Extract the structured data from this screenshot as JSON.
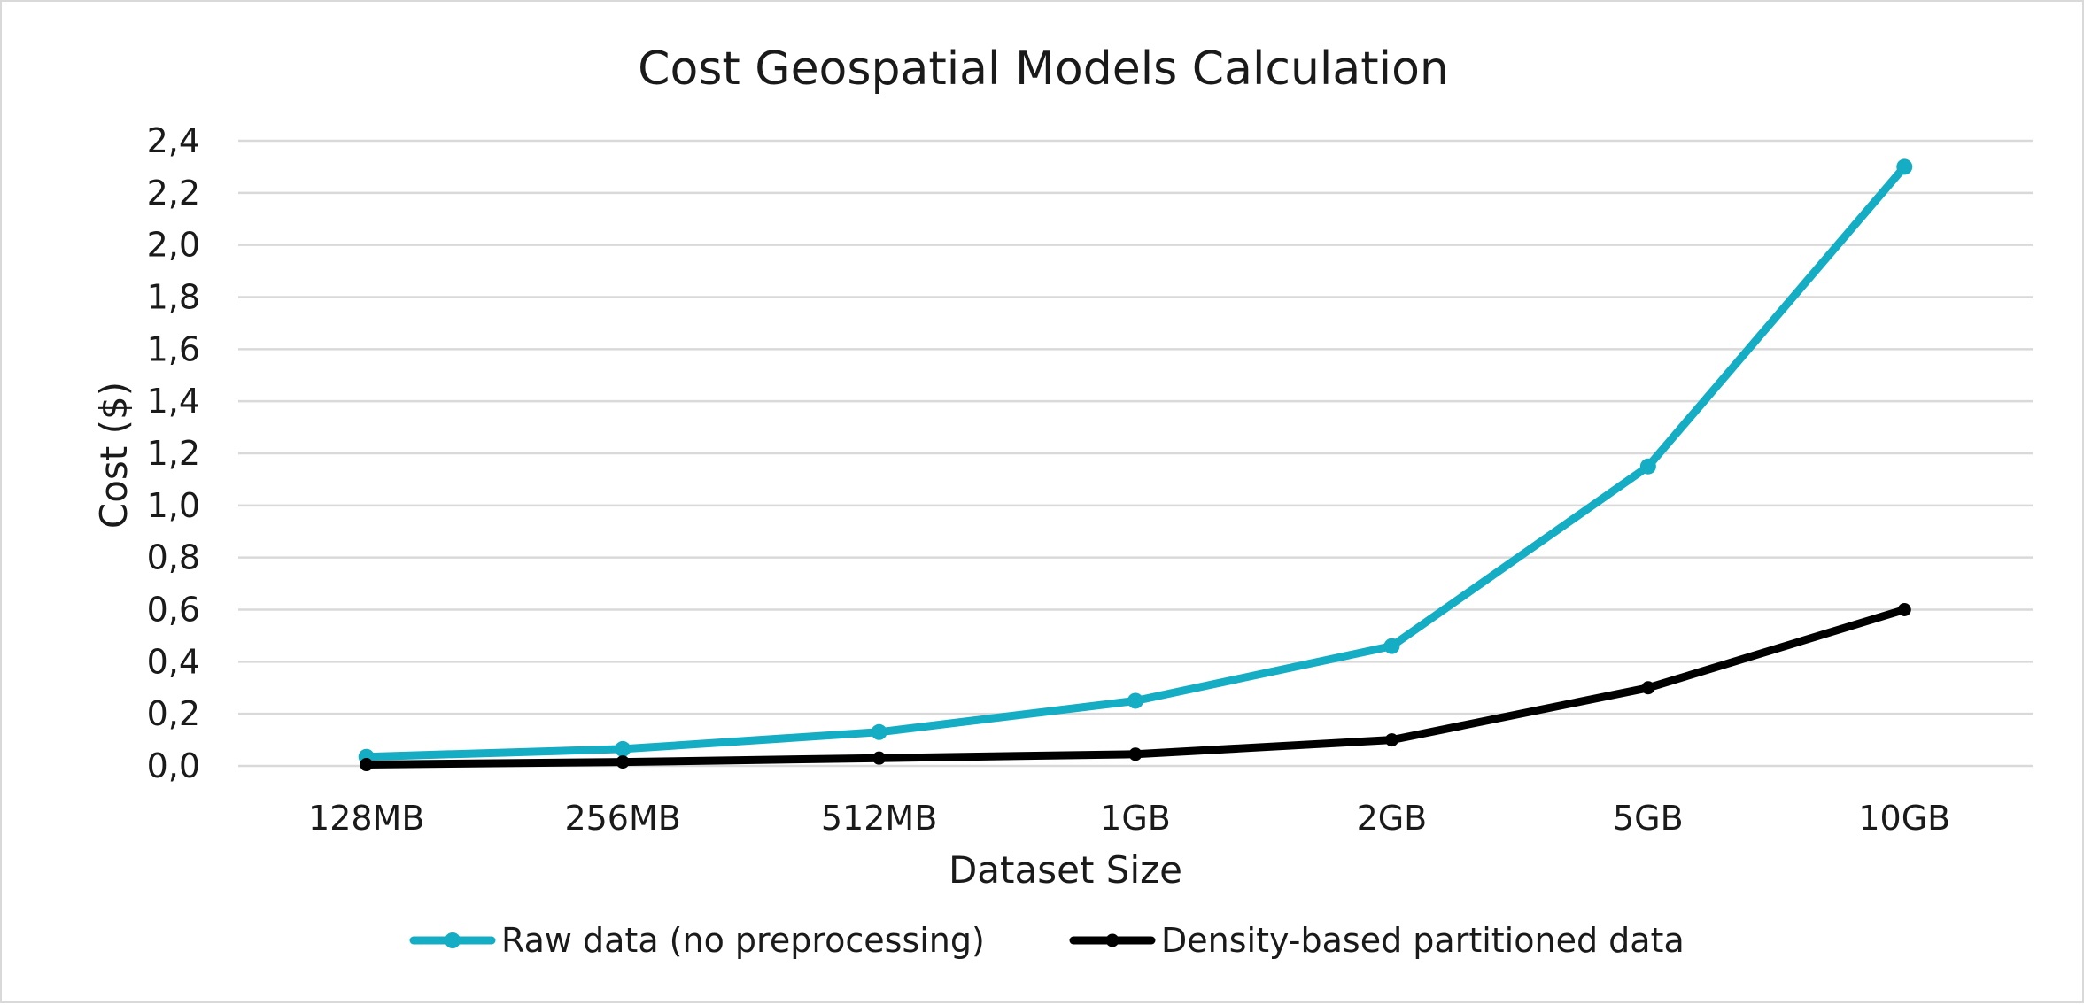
{
  "chart_data": {
    "type": "line",
    "title": "Cost Geospatial Models Calculation",
    "xlabel": "Dataset Size",
    "ylabel": "Cost ($)",
    "categories": [
      "128MB",
      "256MB",
      "512MB",
      "1GB",
      "2GB",
      "5GB",
      "10GB"
    ],
    "y_ticks": [
      "0,0",
      "0,2",
      "0,4",
      "0,6",
      "0,8",
      "1,0",
      "1,2",
      "1,4",
      "1,6",
      "1,8",
      "2,0",
      "2,2",
      "2,4"
    ],
    "ylim": [
      0,
      2.4
    ],
    "grid": true,
    "legend_position": "bottom",
    "series": [
      {
        "name": "Raw data (no preprocessing)",
        "color": "#14adc4",
        "values": [
          0.035,
          0.065,
          0.13,
          0.25,
          0.46,
          1.15,
          2.3
        ]
      },
      {
        "name": "Density-based partitioned data",
        "color": "#000000",
        "values": [
          0.005,
          0.015,
          0.03,
          0.045,
          0.1,
          0.3,
          0.6
        ]
      }
    ]
  }
}
